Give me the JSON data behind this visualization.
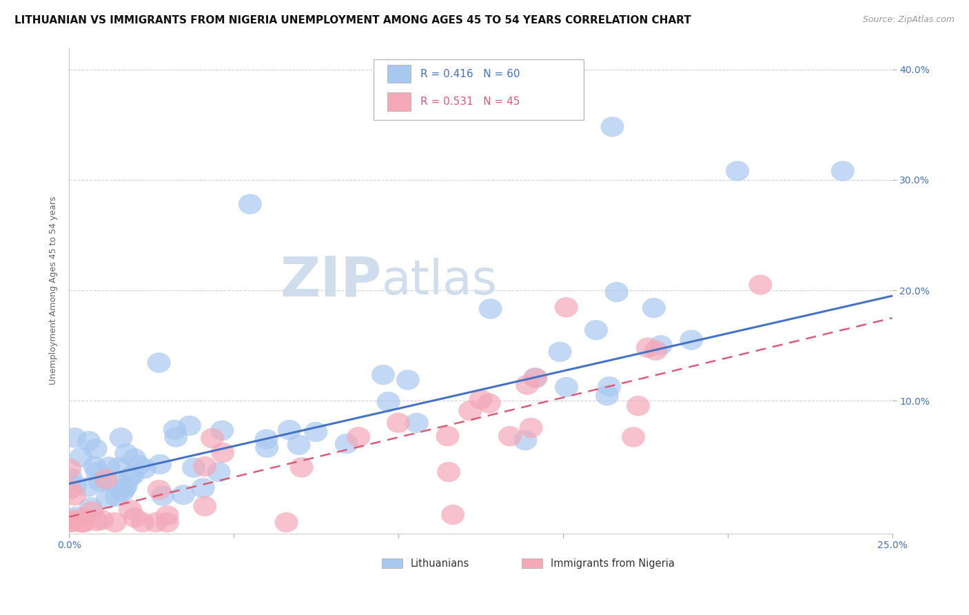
{
  "title": "LITHUANIAN VS IMMIGRANTS FROM NIGERIA UNEMPLOYMENT AMONG AGES 45 TO 54 YEARS CORRELATION CHART",
  "source": "Source: ZipAtlas.com",
  "ylabel": "Unemployment Among Ages 45 to 54 years",
  "xmin": 0.0,
  "xmax": 0.25,
  "ymin": -0.02,
  "ymax": 0.42,
  "series1_label": "Lithuanians",
  "series1_color": "#a8c8f0",
  "series1_line_color": "#4472c4",
  "series1_R": 0.416,
  "series1_N": 60,
  "series2_label": "Immigrants from Nigeria",
  "series2_color": "#f4a8b8",
  "series2_line_color": "#e05878",
  "series2_R": 0.531,
  "series2_N": 45,
  "background_color": "#ffffff",
  "grid_color": "#c8c8c8",
  "watermark_text1": "ZIP",
  "watermark_text2": "atlas",
  "watermark_color1": "#c5d5e8",
  "watermark_color2": "#c5d5e8",
  "title_fontsize": 11,
  "axis_label_fontsize": 9,
  "tick_fontsize": 10,
  "line1_x0": 0.0,
  "line1_y0": 0.025,
  "line1_x1": 0.25,
  "line1_y1": 0.195,
  "line2_x0": 0.0,
  "line2_y0": -0.005,
  "line2_x1": 0.25,
  "line2_y1": 0.175
}
